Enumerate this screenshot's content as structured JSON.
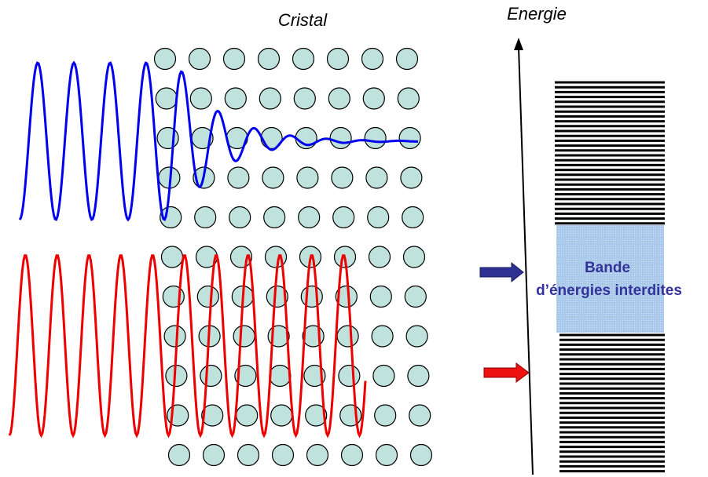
{
  "header": {
    "crystal_title": "Cristal",
    "energy_title": "Energie"
  },
  "gap_label": {
    "line1": "Bande",
    "line2": "d’énergies interdites"
  }
}
